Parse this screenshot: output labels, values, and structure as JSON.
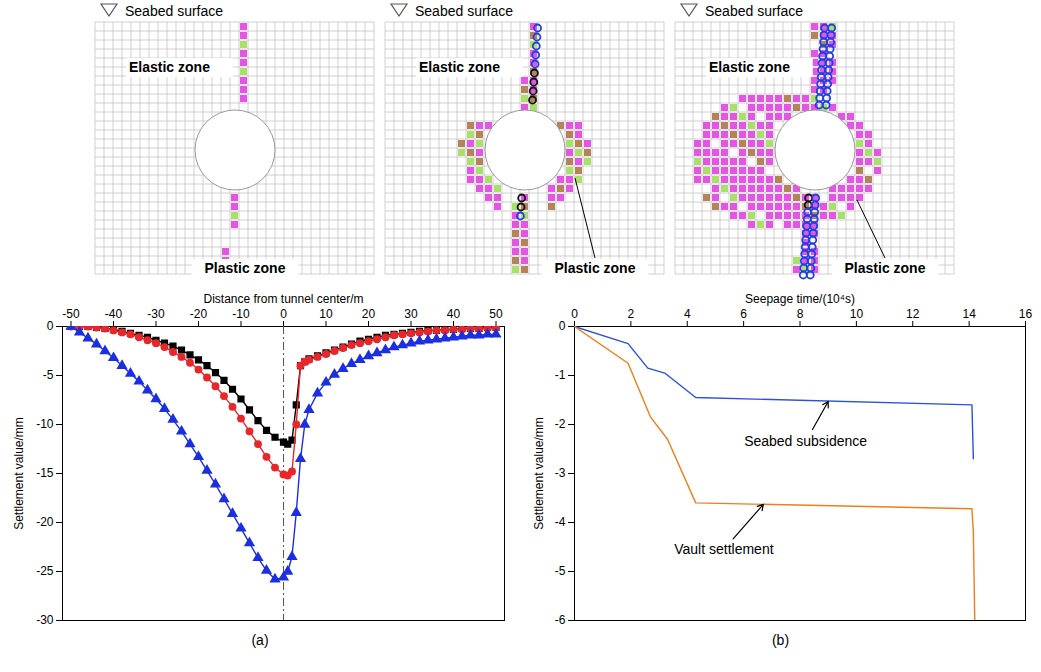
{
  "diagrams": [
    {
      "surface_label": "Seabed surface",
      "elastic_label": "Elastic zone",
      "plastic_label": "Plastic zone"
    },
    {
      "surface_label": "Seabed surface",
      "elastic_label": "Elastic zone",
      "plastic_label": "Plastic zone"
    },
    {
      "surface_label": "Seabed surface",
      "elastic_label": "Elastic zone",
      "plastic_label": "Plastic zone"
    }
  ],
  "chart_data": [
    {
      "type": "line",
      "label": "(a)",
      "x_label": "Distance from tunnel center/m",
      "y_label": "Settlement value/mm",
      "xlim": [
        -52,
        52
      ],
      "xticks": [
        -50,
        -40,
        -30,
        -20,
        -10,
        0,
        10,
        20,
        30,
        40,
        50
      ],
      "ylim": [
        -30,
        0
      ],
      "yticks": [
        -30,
        -25,
        -20,
        -15,
        -10,
        -5,
        0
      ],
      "vline": 0,
      "x": [
        -50,
        -48,
        -46,
        -44,
        -42,
        -40,
        -38,
        -36,
        -34,
        -32,
        -30,
        -28,
        -26,
        -24,
        -22,
        -20,
        -18,
        -16,
        -14,
        -12,
        -10,
        -8,
        -6,
        -4,
        -2,
        0,
        1,
        2,
        3,
        4,
        5,
        6,
        8,
        10,
        12,
        14,
        16,
        18,
        20,
        22,
        24,
        26,
        28,
        30,
        32,
        34,
        36,
        38,
        40,
        42,
        44,
        46,
        48,
        50
      ],
      "series": [
        {
          "color": "#000000",
          "marker": "square",
          "values": [
            0,
            0,
            0,
            -0.1,
            -0.2,
            -0.3,
            -0.5,
            -0.7,
            -0.9,
            -1.1,
            -1.4,
            -1.7,
            -2.0,
            -2.4,
            -2.9,
            -3.4,
            -4.0,
            -4.7,
            -5.5,
            -6.4,
            -7.4,
            -8.5,
            -9.6,
            -10.6,
            -11.3,
            -11.8,
            -12.0,
            -11.6,
            -8.0,
            -4.0,
            -3.6,
            -3.3,
            -3.0,
            -2.7,
            -2.4,
            -2.1,
            -1.8,
            -1.5,
            -1.3,
            -1.1,
            -0.9,
            -0.8,
            -0.7,
            -0.6,
            -0.5,
            -0.4,
            -0.4,
            -0.3,
            -0.3,
            -0.2,
            -0.2,
            -0.2,
            -0.1,
            -0.1
          ]
        },
        {
          "color": "#e8272a",
          "marker": "circle",
          "values": [
            0,
            0,
            0,
            -0.1,
            -0.2,
            -0.4,
            -0.6,
            -0.8,
            -1.1,
            -1.4,
            -1.7,
            -2.1,
            -2.6,
            -3.1,
            -3.7,
            -4.4,
            -5.2,
            -6.1,
            -7.1,
            -8.2,
            -9.4,
            -10.7,
            -12.0,
            -13.3,
            -14.4,
            -15.1,
            -15.2,
            -14.8,
            -10.0,
            -4.0,
            -3.6,
            -3.4,
            -3.1,
            -2.8,
            -2.5,
            -2.2,
            -1.9,
            -1.7,
            -1.5,
            -1.3,
            -1.1,
            -0.9,
            -0.8,
            -0.7,
            -0.6,
            -0.5,
            -0.4,
            -0.4,
            -0.3,
            -0.3,
            -0.2,
            -0.2,
            -0.2,
            -0.1
          ]
        },
        {
          "color": "#1c2fe0",
          "marker": "triangle",
          "values": [
            0,
            -0.6,
            -1.2,
            -1.8,
            -2.5,
            -3.2,
            -4.0,
            -4.8,
            -5.6,
            -6.5,
            -7.4,
            -8.4,
            -9.5,
            -10.7,
            -12.0,
            -13.3,
            -14.7,
            -16.1,
            -17.6,
            -19.1,
            -20.6,
            -22.1,
            -23.6,
            -24.9,
            -25.8,
            -25.6,
            -25.0,
            -23.5,
            -19.0,
            -13.5,
            -10.0,
            -8.5,
            -6.8,
            -5.7,
            -4.9,
            -4.3,
            -3.8,
            -3.4,
            -3.0,
            -2.7,
            -2.4,
            -2.1,
            -1.9,
            -1.7,
            -1.5,
            -1.4,
            -1.3,
            -1.2,
            -1.1,
            -1.0,
            -0.9,
            -0.9,
            -0.8,
            -0.8
          ]
        }
      ]
    },
    {
      "type": "line",
      "label": "(b)",
      "x_label": "Seepage time/(10⁴s)",
      "y_label": "Settlement value/mm",
      "xlim": [
        0,
        16
      ],
      "xticks": [
        0,
        2,
        4,
        6,
        8,
        10,
        12,
        14,
        16
      ],
      "ylim": [
        -6,
        0
      ],
      "yticks": [
        -6,
        -5,
        -4,
        -3,
        -2,
        -1,
        0
      ],
      "series": [
        {
          "color": "#2d4fe0",
          "x": [
            0,
            1.9,
            2.6,
            3.2,
            4.3,
            14.1,
            14.15
          ],
          "values": [
            0,
            -0.35,
            -0.85,
            -0.95,
            -1.45,
            -1.6,
            -2.7
          ]
        },
        {
          "color": "#f07c1c",
          "x": [
            0,
            1.9,
            2.7,
            3.3,
            4.3,
            14.1,
            14.15,
            14.2
          ],
          "values": [
            0,
            -0.75,
            -1.85,
            -2.3,
            -3.6,
            -3.72,
            -4.2,
            -6.0
          ]
        }
      ],
      "annotations": [
        {
          "text": "Seabed subsidence",
          "text_x": 8.2,
          "text_y": -2.35,
          "x": 9.0,
          "y": -1.53
        },
        {
          "text": "Vault settlement",
          "text_x": 5.3,
          "text_y": -4.55,
          "x": 6.7,
          "y": -3.63
        }
      ]
    }
  ]
}
